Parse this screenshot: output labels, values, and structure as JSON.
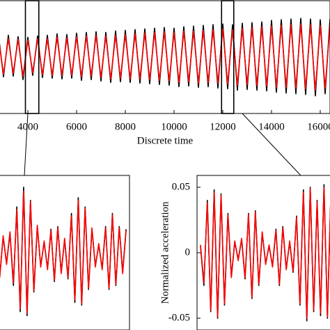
{
  "chart_data": [
    {
      "type": "line",
      "xlabel": "Discrete time",
      "xlim": [
        2800,
        16400
      ],
      "ylim": [
        -0.08,
        0.08
      ],
      "xticks": [
        4000,
        6000,
        8000,
        10000,
        12000,
        14000,
        16000
      ],
      "windows": [
        [
          3900,
          4450
        ],
        [
          11950,
          12450
        ]
      ],
      "x": [
        2800,
        3000,
        3200,
        3400,
        3600,
        3800,
        4000,
        4200,
        4400,
        4600,
        4800,
        5000,
        5200,
        5400,
        5600,
        5800,
        6000,
        6200,
        6400,
        6600,
        6800,
        7000,
        7200,
        7400,
        7600,
        7800,
        8000,
        8200,
        8400,
        8600,
        8800,
        9000,
        9200,
        9400,
        9600,
        9800,
        10000,
        10200,
        10400,
        10600,
        10800,
        11000,
        11200,
        11400,
        11600,
        11800,
        12000,
        12200,
        12400,
        12600,
        12800,
        13000,
        13200,
        13400,
        13600,
        13800,
        14000,
        14200,
        14400,
        14600,
        14800,
        15000,
        15200,
        15400,
        15600,
        15800,
        16000,
        16200,
        16400
      ],
      "series": [
        {
          "color": "#000000",
          "values": [
            0.03,
            -0.028,
            0.031,
            -0.027,
            0.029,
            -0.032,
            0.028,
            -0.026,
            0.03,
            -0.029,
            0.031,
            -0.03,
            0.033,
            -0.031,
            0.032,
            -0.03,
            0.034,
            -0.033,
            0.035,
            -0.032,
            0.036,
            -0.034,
            0.035,
            -0.036,
            0.037,
            -0.035,
            0.038,
            -0.036,
            0.039,
            -0.037,
            0.04,
            -0.038,
            0.041,
            -0.039,
            0.042,
            -0.04,
            0.041,
            -0.042,
            0.043,
            -0.041,
            0.044,
            -0.043,
            0.045,
            -0.042,
            0.046,
            -0.044,
            0.047,
            -0.045,
            0.046,
            -0.047,
            0.048,
            -0.046,
            0.049,
            -0.047,
            0.05,
            -0.048,
            0.052,
            -0.05,
            0.053,
            -0.051,
            0.054,
            -0.052,
            0.055,
            -0.053,
            0.054,
            -0.055,
            0.053,
            -0.052,
            0.054
          ]
        },
        {
          "color": "#ff0000",
          "values": [
            0.026,
            -0.024,
            0.026,
            -0.023,
            0.025,
            -0.027,
            0.024,
            -0.022,
            0.026,
            -0.025,
            0.026,
            -0.026,
            0.028,
            -0.026,
            0.027,
            -0.026,
            0.029,
            -0.028,
            0.03,
            -0.027,
            0.031,
            -0.029,
            0.03,
            -0.031,
            0.031,
            -0.03,
            0.032,
            -0.031,
            0.033,
            -0.031,
            0.034,
            -0.032,
            0.035,
            -0.033,
            0.036,
            -0.034,
            0.035,
            -0.036,
            0.037,
            -0.035,
            0.037,
            -0.037,
            0.038,
            -0.036,
            0.039,
            -0.037,
            0.04,
            -0.038,
            0.039,
            -0.04,
            0.041,
            -0.039,
            0.042,
            -0.04,
            0.043,
            -0.041,
            0.044,
            -0.043,
            0.045,
            -0.043,
            0.046,
            -0.044,
            0.047,
            -0.045,
            0.046,
            -0.047,
            0.045,
            -0.044,
            0.046
          ]
        }
      ]
    },
    {
      "type": "line",
      "xlim": [
        3990,
        4410
      ],
      "ylim": [
        -0.059,
        0.059
      ],
      "x": [
        4000,
        4010,
        4020,
        4030,
        4040,
        4050,
        4060,
        4070,
        4080,
        4090,
        4100,
        4110,
        4120,
        4130,
        4140,
        4150,
        4160,
        4170,
        4180,
        4190,
        4200,
        4210,
        4220,
        4230,
        4240,
        4250,
        4260,
        4270,
        4280,
        4290,
        4300,
        4310,
        4320,
        4330,
        4340,
        4350,
        4360,
        4370,
        4380,
        4390,
        4400
      ],
      "series": [
        {
          "color": "#000000",
          "values": [
            0.01,
            -0.015,
            0.02,
            -0.018,
            0.012,
            -0.008,
            0.015,
            -0.025,
            0.035,
            -0.045,
            0.05,
            -0.048,
            0.04,
            -0.03,
            0.02,
            -0.01,
            0.008,
            -0.012,
            0.018,
            -0.022,
            0.02,
            -0.015,
            0.01,
            -0.02,
            0.03,
            -0.038,
            0.042,
            -0.04,
            0.035,
            -0.028,
            0.018,
            -0.01,
            0.006,
            -0.012,
            0.02,
            -0.028,
            0.03,
            -0.025,
            0.02,
            -0.015,
            0.018
          ]
        },
        {
          "color": "#ff0000",
          "values": [
            0.012,
            -0.014,
            0.018,
            -0.019,
            0.013,
            -0.009,
            0.016,
            -0.023,
            0.033,
            -0.043,
            0.047,
            -0.046,
            0.039,
            -0.029,
            0.021,
            -0.011,
            0.009,
            -0.013,
            0.017,
            -0.021,
            0.019,
            -0.016,
            0.011,
            -0.019,
            0.028,
            -0.036,
            0.04,
            -0.039,
            0.034,
            -0.027,
            0.019,
            -0.011,
            0.007,
            -0.013,
            0.019,
            -0.027,
            0.029,
            -0.024,
            0.019,
            -0.016,
            0.017
          ]
        }
      ]
    },
    {
      "type": "line",
      "ylabel": "Normalized acceleration",
      "xlim": [
        11990,
        12410
      ],
      "ylim": [
        -0.059,
        0.059
      ],
      "yticks": [
        0.05,
        0,
        -0.05
      ],
      "x": [
        12000,
        12010,
        12020,
        12030,
        12040,
        12050,
        12060,
        12070,
        12080,
        12090,
        12100,
        12110,
        12120,
        12130,
        12140,
        12150,
        12160,
        12170,
        12180,
        12190,
        12200,
        12210,
        12220,
        12230,
        12240,
        12250,
        12260,
        12270,
        12280,
        12290,
        12300,
        12310,
        12320,
        12330,
        12340,
        12350,
        12360,
        12370,
        12380,
        12390,
        12400
      ],
      "series": [
        {
          "color": "#000000",
          "values": [
            0.005,
            -0.025,
            0.04,
            -0.045,
            0.048,
            -0.05,
            0.045,
            -0.04,
            0.03,
            -0.018,
            0.008,
            -0.005,
            0.01,
            -0.02,
            0.03,
            -0.035,
            0.032,
            -0.025,
            0.015,
            -0.008,
            0.005,
            -0.01,
            0.018,
            -0.025,
            0.02,
            -0.012,
            0.008,
            -0.015,
            0.028,
            -0.04,
            0.048,
            -0.052,
            0.05,
            -0.045,
            0.04,
            -0.048,
            0.052,
            -0.05,
            0.045,
            -0.038,
            0.03
          ]
        },
        {
          "color": "#ff0000",
          "values": [
            0.006,
            -0.023,
            0.038,
            -0.044,
            0.046,
            -0.049,
            0.044,
            -0.039,
            0.029,
            -0.019,
            0.009,
            -0.006,
            0.011,
            -0.019,
            0.029,
            -0.034,
            0.031,
            -0.024,
            0.016,
            -0.009,
            0.006,
            -0.011,
            0.017,
            -0.024,
            0.019,
            -0.013,
            0.009,
            -0.014,
            0.027,
            -0.039,
            0.046,
            -0.05,
            0.049,
            -0.044,
            0.039,
            -0.046,
            0.05,
            -0.049,
            0.044,
            -0.037,
            0.029
          ]
        }
      ]
    }
  ]
}
